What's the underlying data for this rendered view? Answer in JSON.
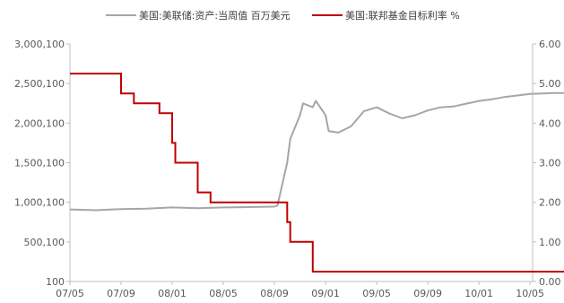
{
  "legend": {
    "series_1": "美国:美联储:资产:当周值 百万美元",
    "series_2": "美国:联邦基金目标利率 %"
  },
  "chart_data": {
    "type": "line",
    "x_ticks": [
      "07/05",
      "07/09",
      "08/01",
      "08/05",
      "08/09",
      "09/01",
      "09/05",
      "09/09",
      "10/01",
      "10/05"
    ],
    "left_axis": {
      "ticks": [
        "100",
        "500,100",
        "1,000,100",
        "1,500,100",
        "2,000,100",
        "2,500,100",
        "3,000,100"
      ],
      "range": [
        100,
        3000100
      ]
    },
    "right_axis": {
      "ticks": [
        "0.00",
        "1.00",
        "2.00",
        "3.00",
        "4.00",
        "5.00",
        "6.00"
      ],
      "range": [
        0,
        6
      ]
    },
    "grid": false,
    "legend_position": "top",
    "series": [
      {
        "name": "美国:美联储:资产:当周值 百万美元",
        "axis": "left",
        "color": "#a6a6a6",
        "points": [
          [
            "07/05",
            910000
          ],
          [
            "07/07",
            900000
          ],
          [
            "07/09",
            915000
          ],
          [
            "07/11",
            920000
          ],
          [
            "08/01",
            935000
          ],
          [
            "08/03",
            925000
          ],
          [
            "08/05",
            935000
          ],
          [
            "08/07",
            940000
          ],
          [
            "08/09",
            945000
          ],
          [
            "08/09b",
            960000
          ],
          [
            "08/10",
            1500000
          ],
          [
            "08/10b",
            1800000
          ],
          [
            "08/11",
            2100000
          ],
          [
            "08/11b",
            2250000
          ],
          [
            "08/12",
            2200000
          ],
          [
            "08/12b",
            2280000
          ],
          [
            "09/01",
            2100000
          ],
          [
            "09/01b",
            1900000
          ],
          [
            "09/02",
            1880000
          ],
          [
            "09/03",
            1960000
          ],
          [
            "09/04",
            2150000
          ],
          [
            "09/05",
            2200000
          ],
          [
            "09/06",
            2120000
          ],
          [
            "09/07",
            2060000
          ],
          [
            "09/08",
            2100000
          ],
          [
            "09/09",
            2160000
          ],
          [
            "09/10",
            2200000
          ],
          [
            "09/11",
            2210000
          ],
          [
            "10/01",
            2280000
          ],
          [
            "10/02",
            2300000
          ],
          [
            "10/03",
            2330000
          ],
          [
            "10/05",
            2370000
          ],
          [
            "10/07",
            2380000
          ],
          [
            "10/08",
            2380000
          ]
        ]
      },
      {
        "name": "美国:联邦基金目标利率 %",
        "axis": "right",
        "color": "#c00000",
        "steps": [
          [
            "07/05",
            5.25
          ],
          [
            "07/09",
            4.75
          ],
          [
            "07/10",
            4.5
          ],
          [
            "07/12",
            4.25
          ],
          [
            "08/01",
            3.5
          ],
          [
            "08/01b",
            3.0
          ],
          [
            "08/03",
            2.25
          ],
          [
            "08/04",
            2.0
          ],
          [
            "08/10",
            1.5
          ],
          [
            "08/10b",
            1.0
          ],
          [
            "08/12",
            0.25
          ],
          [
            "10/08",
            0.25
          ]
        ]
      }
    ]
  }
}
